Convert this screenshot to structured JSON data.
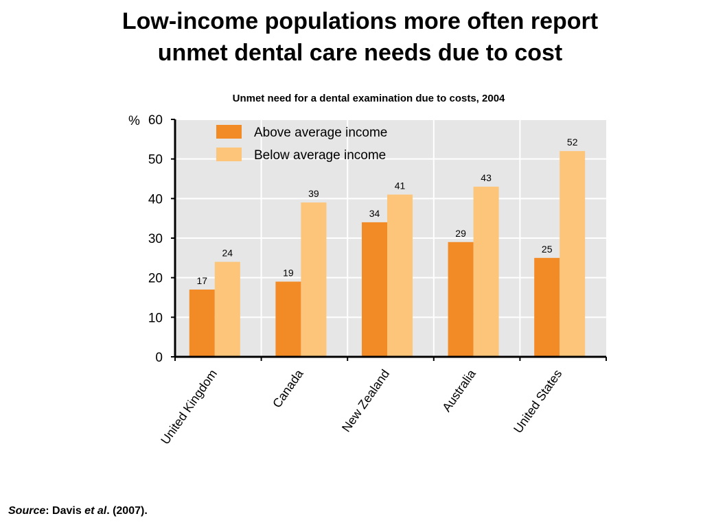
{
  "slide": {
    "title_line1": "Low-income populations more often report",
    "title_line2": "unmet dental care needs due to cost"
  },
  "chart_data": {
    "type": "bar",
    "title": "Unmet need for a dental examination due to costs, 2004",
    "ylabel": "%",
    "ylim": [
      0,
      60
    ],
    "yticks": [
      0,
      10,
      20,
      30,
      40,
      50,
      60
    ],
    "categories": [
      "United Kingdom",
      "Canada",
      "New Zealand",
      "Australia",
      "United States"
    ],
    "series": [
      {
        "name": "Above average income",
        "values": [
          17,
          19,
          34,
          29,
          25
        ],
        "color": "#F28A25"
      },
      {
        "name": "Below average income",
        "values": [
          24,
          39,
          41,
          43,
          52
        ],
        "color": "#FCC57A"
      }
    ],
    "grid": true,
    "legend": "top-left",
    "plot_background": "#E6E6E6"
  },
  "source": {
    "label": "Source",
    "sep": ": Davis ",
    "etal": "et al",
    "rest": ". (2007)."
  }
}
